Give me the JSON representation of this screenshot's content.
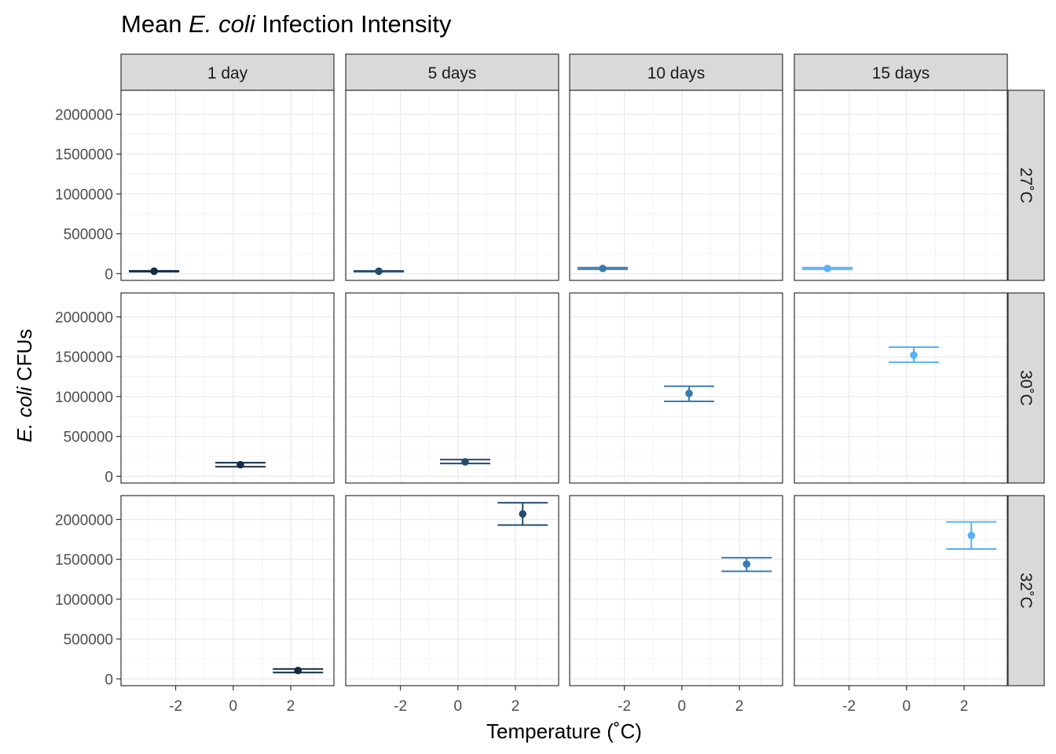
{
  "chart_data": {
    "type": "scatter",
    "title_parts": [
      "Mean ",
      "E. coli",
      " Infection Intensity"
    ],
    "xlabel": "Temperature (˚C)",
    "ylabel_parts": [
      "E. coli",
      " CFUs"
    ],
    "columns": [
      "1 day",
      "5 days",
      "10 days",
      "15 days"
    ],
    "rows": [
      "27˚C",
      "30˚C",
      "32˚C"
    ],
    "xlim": [
      -3.9,
      3.5
    ],
    "ylim": [
      -85000,
      2300000
    ],
    "x_ticks": [
      -2,
      0,
      2
    ],
    "x_tick_labels": [
      "-2",
      "0",
      "2"
    ],
    "y_ticks": [
      0,
      500000,
      1000000,
      1500000,
      2000000
    ],
    "y_tick_labels": [
      "0",
      "500000",
      "1000000",
      "1500000",
      "2000000"
    ],
    "grid": true,
    "series_colors": {
      "1 day": "#132b43",
      "5 days": "#244c6e",
      "10 days": "#3a7ab0",
      "15 days": "#56b1f7"
    },
    "points": [
      {
        "row": "27˚C",
        "col": "1 day",
        "x": -2.75,
        "y": 30000,
        "ymin": 25000,
        "ymax": 35000
      },
      {
        "row": "27˚C",
        "col": "5 days",
        "x": -2.75,
        "y": 30000,
        "ymin": 25000,
        "ymax": 35000
      },
      {
        "row": "27˚C",
        "col": "10 days",
        "x": -2.75,
        "y": 65000,
        "ymin": 55000,
        "ymax": 75000
      },
      {
        "row": "27˚C",
        "col": "15 days",
        "x": -2.75,
        "y": 65000,
        "ymin": 55000,
        "ymax": 75000
      },
      {
        "row": "30˚C",
        "col": "1 day",
        "x": 0.25,
        "y": 145000,
        "ymin": 120000,
        "ymax": 170000
      },
      {
        "row": "30˚C",
        "col": "5 days",
        "x": 0.25,
        "y": 180000,
        "ymin": 160000,
        "ymax": 210000
      },
      {
        "row": "30˚C",
        "col": "10 days",
        "x": 0.25,
        "y": 1040000,
        "ymin": 940000,
        "ymax": 1130000
      },
      {
        "row": "30˚C",
        "col": "15 days",
        "x": 0.25,
        "y": 1520000,
        "ymin": 1430000,
        "ymax": 1620000
      },
      {
        "row": "32˚C",
        "col": "1 day",
        "x": 2.25,
        "y": 105000,
        "ymin": 80000,
        "ymax": 125000
      },
      {
        "row": "32˚C",
        "col": "5 days",
        "x": 2.25,
        "y": 2070000,
        "ymin": 1930000,
        "ymax": 2210000
      },
      {
        "row": "32˚C",
        "col": "10 days",
        "x": 2.25,
        "y": 1440000,
        "ymin": 1350000,
        "ymax": 1520000
      },
      {
        "row": "32˚C",
        "col": "15 days",
        "x": 2.25,
        "y": 1800000,
        "ymin": 1630000,
        "ymax": 1970000
      }
    ]
  }
}
